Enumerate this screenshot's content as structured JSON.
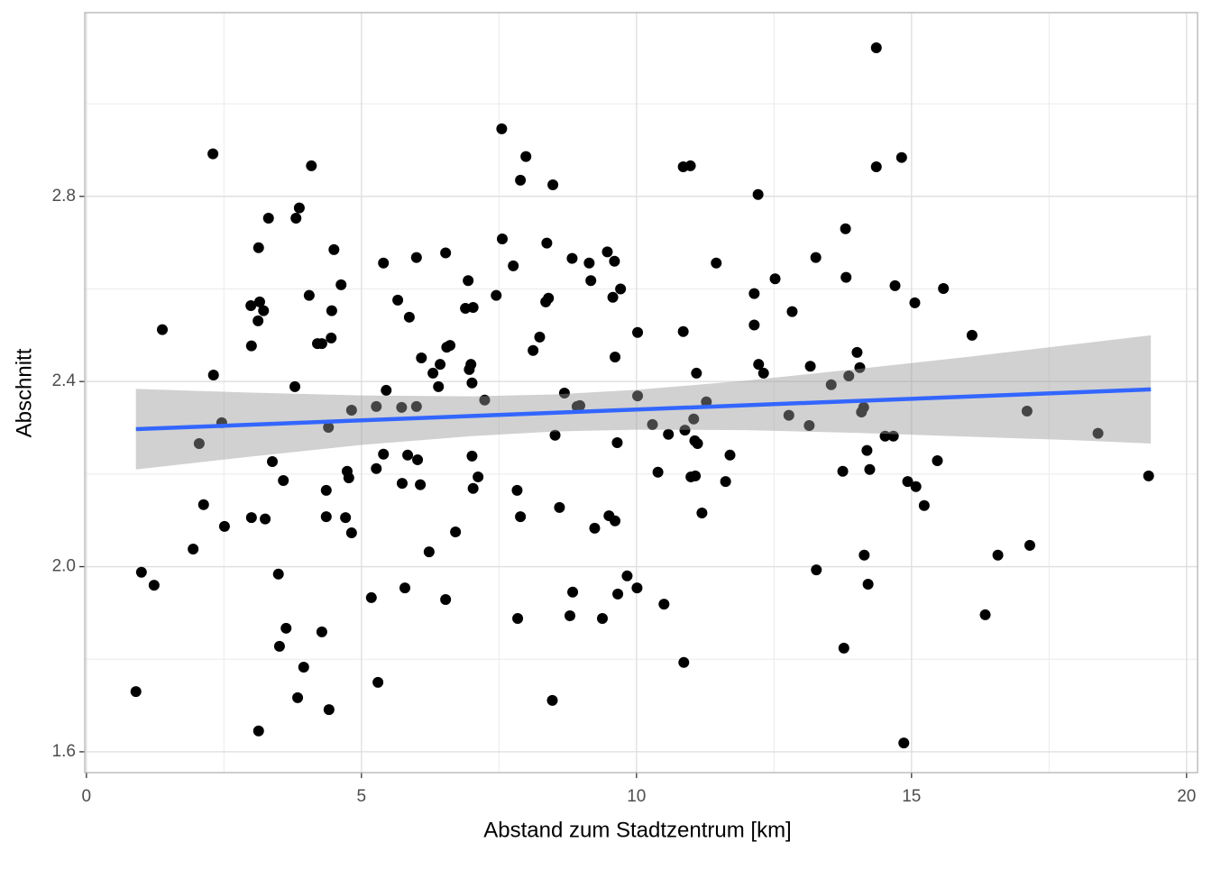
{
  "chart_data": {
    "type": "scatter",
    "x_label": "Abstand zum Stadtzentrum [km]",
    "y_label": "Abschnitt",
    "xlim": [
      -0.03,
      20.2
    ],
    "ylim": [
      1.555,
      3.197
    ],
    "xticks": [
      0,
      5,
      10,
      15,
      20
    ],
    "yticks": [
      1.6,
      {
        "value": 2,
        "label": "2.0"
      },
      2.4,
      2.8
    ],
    "x_minor_grid": [
      2.5,
      7.5,
      12.5,
      17.5
    ],
    "y_minor_grid": [
      1.8,
      2.2,
      2.6,
      3.0
    ],
    "grid": true,
    "series": [
      {
        "color": "#000000",
        "x": [
          0.9,
          1.0,
          1.23,
          1.38,
          1.94,
          2.05,
          2.13,
          2.3,
          2.31,
          2.46,
          2.51,
          2.99,
          3.0,
          3.0,
          3.12,
          3.13,
          3.15,
          3.13,
          3.22,
          3.25,
          3.31,
          3.38,
          3.49,
          3.51,
          3.58,
          3.63,
          3.79,
          3.81,
          3.84,
          3.87,
          3.95,
          4.05,
          4.09,
          4.2,
          4.28,
          4.28,
          4.36,
          4.36,
          4.4,
          4.41,
          4.45,
          4.46,
          4.5,
          4.63,
          4.71,
          4.74,
          4.77,
          4.82,
          4.82,
          5.18,
          5.27,
          5.27,
          5.3,
          5.4,
          5.4,
          5.45,
          5.66,
          5.73,
          5.74,
          5.79,
          5.84,
          5.87,
          6.0,
          6.0,
          6.02,
          6.07,
          6.09,
          6.23,
          6.3,
          6.4,
          6.43,
          6.53,
          6.53,
          6.55,
          6.61,
          6.71,
          6.89,
          6.94,
          6.96,
          6.99,
          7.01,
          7.01,
          7.03,
          7.03,
          7.12,
          7.24,
          7.45,
          7.55,
          7.56,
          7.76,
          7.83,
          7.84,
          7.89,
          7.89,
          7.99,
          8.12,
          8.24,
          8.35,
          8.37,
          8.4,
          8.48,
          8.47,
          8.52,
          8.6,
          8.69,
          8.79,
          8.83,
          8.84,
          8.92,
          8.97,
          9.14,
          9.17,
          9.24,
          9.38,
          9.47,
          9.5,
          9.57,
          9.6,
          9.61,
          9.61,
          9.65,
          9.66,
          9.71,
          9.83,
          10.01,
          10.02,
          10.02,
          10.29,
          10.39,
          10.5,
          10.58,
          10.85,
          10.85,
          10.86,
          10.88,
          10.98,
          10.99,
          11.04,
          11.06,
          11.07,
          11.09,
          11.11,
          11.19,
          11.27,
          11.45,
          11.62,
          11.7,
          12.14,
          12.14,
          12.21,
          12.22,
          12.31,
          12.52,
          12.77,
          12.83,
          13.14,
          13.16,
          13.26,
          13.27,
          13.54,
          13.75,
          13.77,
          13.8,
          13.81,
          13.86,
          14.01,
          14.06,
          14.09,
          14.13,
          14.14,
          14.19,
          14.21,
          14.24,
          14.36,
          14.36,
          14.52,
          14.67,
          14.7,
          14.82,
          14.86,
          14.93,
          15.06,
          15.08,
          15.23,
          15.47,
          15.58,
          16.1,
          16.34,
          16.57,
          17.1,
          17.15,
          18.39,
          19.31
        ],
        "values": [
          1.73,
          1.988,
          1.96,
          2.512,
          2.038,
          2.266,
          2.134,
          2.892,
          2.414,
          2.311,
          2.087,
          2.564,
          2.477,
          2.106,
          2.531,
          2.689,
          2.572,
          1.645,
          2.553,
          2.103,
          2.753,
          2.227,
          1.984,
          1.828,
          2.186,
          1.867,
          2.389,
          2.753,
          1.717,
          2.775,
          1.783,
          2.586,
          2.866,
          2.482,
          2.482,
          1.859,
          2.165,
          2.108,
          2.301,
          1.691,
          2.494,
          2.553,
          2.685,
          2.609,
          2.106,
          2.206,
          2.192,
          2.338,
          2.073,
          1.933,
          2.212,
          2.346,
          1.75,
          2.656,
          2.243,
          2.381,
          2.576,
          2.344,
          2.18,
          1.954,
          2.241,
          2.539,
          2.346,
          2.668,
          2.231,
          2.177,
          2.451,
          2.032,
          2.418,
          2.389,
          2.437,
          2.678,
          1.929,
          2.474,
          2.478,
          2.075,
          2.558,
          2.618,
          2.426,
          2.437,
          2.397,
          2.239,
          2.56,
          2.169,
          2.194,
          2.36,
          2.586,
          2.946,
          2.708,
          2.65,
          2.165,
          1.888,
          2.835,
          2.108,
          2.886,
          2.467,
          2.496,
          2.572,
          2.699,
          2.58,
          2.825,
          1.711,
          2.284,
          2.128,
          2.375,
          1.894,
          2.666,
          1.945,
          2.346,
          2.348,
          2.656,
          2.618,
          2.083,
          1.888,
          2.68,
          2.11,
          2.582,
          2.66,
          2.453,
          2.099,
          2.268,
          1.941,
          2.6,
          1.98,
          1.954,
          2.506,
          2.369,
          2.307,
          2.204,
          1.919,
          2.286,
          2.508,
          2.864,
          1.793,
          2.295,
          2.866,
          2.194,
          2.319,
          2.272,
          2.196,
          2.418,
          2.266,
          2.116,
          2.356,
          2.656,
          2.184,
          2.241,
          2.59,
          2.522,
          2.804,
          2.437,
          2.418,
          2.622,
          2.327,
          2.551,
          2.305,
          2.433,
          2.668,
          1.993,
          2.393,
          2.206,
          1.824,
          2.73,
          2.625,
          2.412,
          2.463,
          2.43,
          2.334,
          2.344,
          2.025,
          2.251,
          1.962,
          2.21,
          3.121,
          2.864,
          2.282,
          2.282,
          2.607,
          2.884,
          1.619,
          2.184,
          2.57,
          2.173,
          2.132,
          2.229,
          2.601,
          2.5,
          1.896,
          2.025,
          2.336,
          2.046,
          2.288,
          2.196
        ]
      }
    ],
    "band": {
      "color": "#999999",
      "x": [
        0.9,
        3,
        5,
        7,
        8.5,
        10,
        12,
        14,
        16,
        18,
        19.35
      ],
      "lower": [
        2.21,
        2.238,
        2.263,
        2.282,
        2.292,
        2.296,
        2.295,
        2.289,
        2.281,
        2.273,
        2.266
      ],
      "upper": [
        2.384,
        2.376,
        2.37,
        2.368,
        2.372,
        2.382,
        2.402,
        2.427,
        2.453,
        2.481,
        2.5
      ]
    },
    "fit": {
      "color": "#3366FF",
      "x": [
        0.9,
        19.35
      ],
      "y": [
        2.297,
        2.383
      ]
    }
  }
}
